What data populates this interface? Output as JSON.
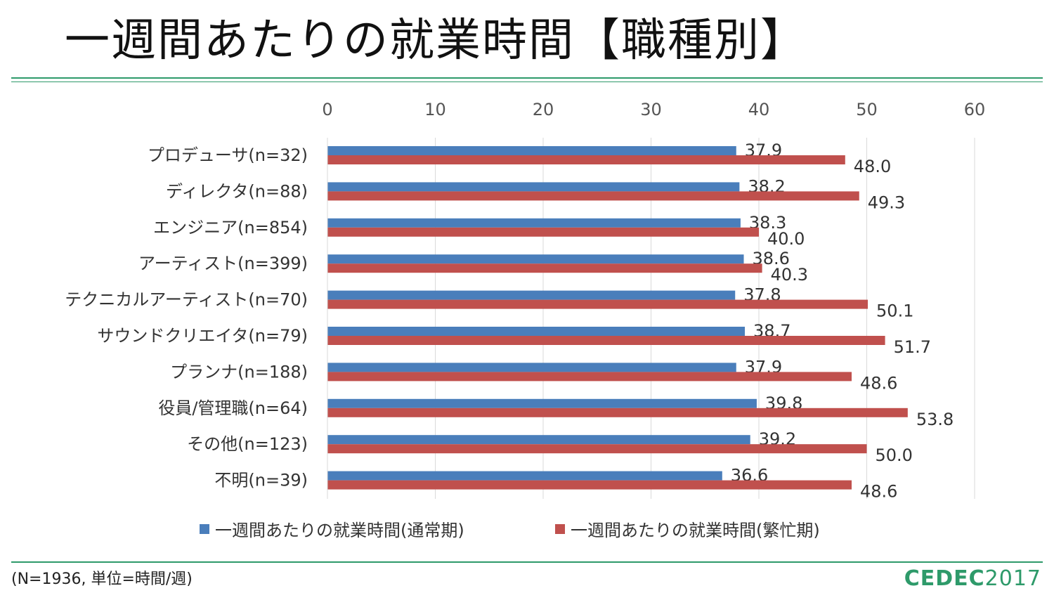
{
  "title": "一週間あたりの就業時間【職種別】",
  "footnote": "(N=1936, 単位=時間/週)",
  "logo": {
    "brand": "CEDEC",
    "year": "2017"
  },
  "colors": {
    "series1": "#4a7ebb",
    "series2": "#c0504d",
    "accent": "#2e9a6a",
    "grid": "#d9d9d9"
  },
  "chart_data": {
    "type": "bar",
    "orientation": "horizontal",
    "title": "一週間あたりの就業時間【職種別】",
    "xlim": [
      0,
      60
    ],
    "xticks": [
      0,
      10,
      20,
      30,
      40,
      50,
      60
    ],
    "tick_labels": [
      "0",
      "10",
      "20",
      "30",
      "40",
      "50",
      "60"
    ],
    "categories": [
      "プロデューサ(n=32)",
      "ディレクタ(n=88)",
      "エンジニア(n=854)",
      "アーティスト(n=399)",
      "テクニカルアーティスト(n=70)",
      "サウンドクリエイタ(n=79)",
      "プランナ(n=188)",
      "役員/管理職(n=64)",
      "その他(n=123)",
      "不明(n=39)"
    ],
    "series": [
      {
        "name": "一週間あたりの就業時間(通常期)",
        "values": [
          37.9,
          38.2,
          38.3,
          38.6,
          37.8,
          38.7,
          37.9,
          39.8,
          39.2,
          36.6
        ],
        "labels": [
          "37.9",
          "38.2",
          "38.3",
          "38.6",
          "37.8",
          "38.7",
          "37.9",
          "39.8",
          "39.2",
          "36.6"
        ]
      },
      {
        "name": "一週間あたりの就業時間(繁忙期)",
        "values": [
          48.0,
          49.3,
          40.0,
          40.3,
          50.1,
          51.7,
          48.6,
          53.8,
          50.0,
          48.6
        ],
        "labels": [
          "48.0",
          "49.3",
          "40.0",
          "40.3",
          "50.1",
          "51.7",
          "48.6",
          "53.8",
          "50.0",
          "48.6"
        ]
      }
    ],
    "grid": true,
    "legend": "bottom"
  }
}
